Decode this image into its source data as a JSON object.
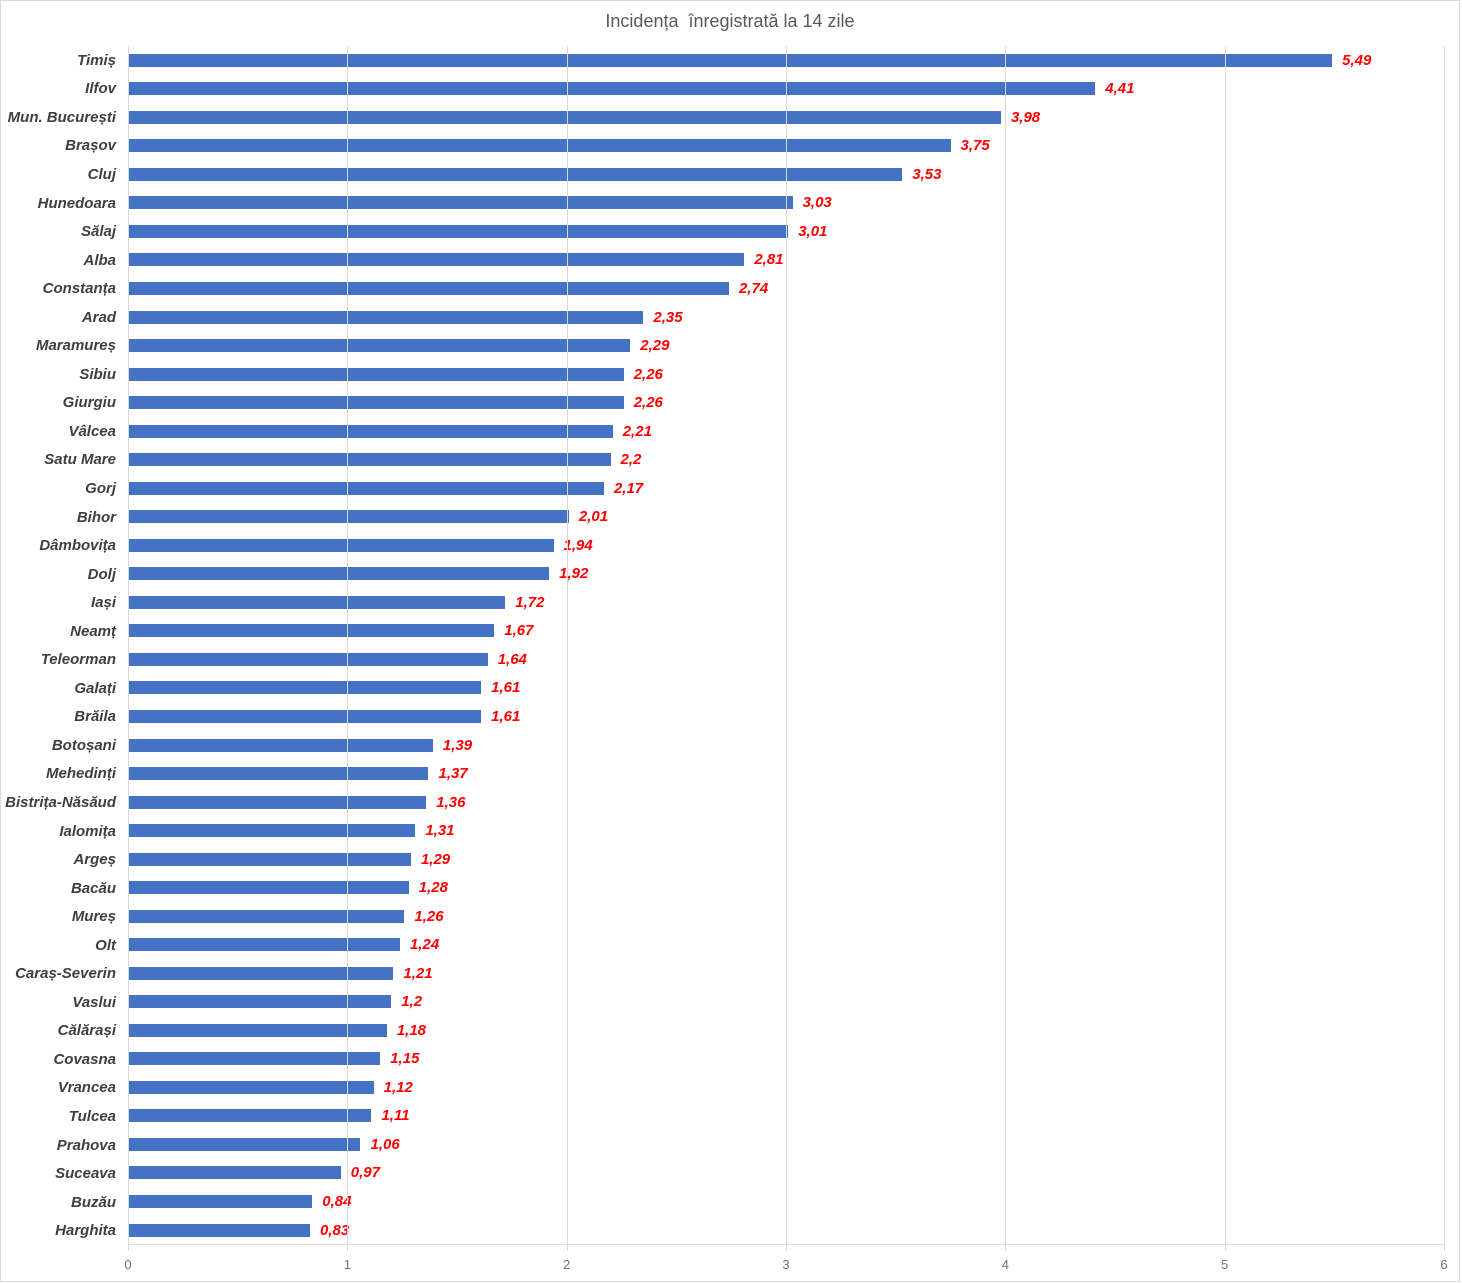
{
  "chart_data": {
    "type": "bar",
    "orientation": "horizontal",
    "title": "Incidența  înregistrată la 14 zile",
    "categories": [
      "Timiș",
      "Ilfov",
      "Mun. București",
      "Brașov",
      "Cluj",
      "Hunedoara",
      "Sălaj",
      "Alba",
      "Constanța",
      "Arad",
      "Maramureș",
      "Sibiu",
      "Giurgiu",
      "Vâlcea",
      "Satu Mare",
      "Gorj",
      "Bihor",
      "Dâmbovița",
      "Dolj",
      "Iași",
      "Neamț",
      "Teleorman",
      "Galați",
      "Brăila",
      "Botoșani",
      "Mehedinți",
      "Bistrița-Năsăud",
      "Ialomița",
      "Argeș",
      "Bacău",
      "Mureș",
      "Olt",
      "Caraș-Severin",
      "Vaslui",
      "Călărași",
      "Covasna",
      "Vrancea",
      "Tulcea",
      "Prahova",
      "Suceava",
      "Buzău",
      "Harghita"
    ],
    "values": [
      5.49,
      4.41,
      3.98,
      3.75,
      3.53,
      3.03,
      3.01,
      2.81,
      2.74,
      2.35,
      2.29,
      2.26,
      2.26,
      2.21,
      2.2,
      2.17,
      2.01,
      1.94,
      1.92,
      1.72,
      1.67,
      1.64,
      1.61,
      1.61,
      1.39,
      1.37,
      1.36,
      1.31,
      1.29,
      1.28,
      1.26,
      1.24,
      1.21,
      1.2,
      1.18,
      1.15,
      1.12,
      1.11,
      1.06,
      0.97,
      0.84,
      0.83
    ],
    "value_labels": [
      "5,49",
      "4,41",
      "3,98",
      "3,75",
      "3,53",
      "3,03",
      "3,01",
      "2,81",
      "2,74",
      "2,35",
      "2,29",
      "2,26",
      "2,26",
      "2,21",
      "2,2",
      "2,17",
      "2,01",
      "1,94",
      "1,92",
      "1,72",
      "1,67",
      "1,64",
      "1,61",
      "1,61",
      "1,39",
      "1,37",
      "1,36",
      "1,31",
      "1,29",
      "1,28",
      "1,26",
      "1,24",
      "1,21",
      "1,2",
      "1,18",
      "1,15",
      "1,12",
      "1,11",
      "1,06",
      "0,97",
      "0,84",
      "0,83"
    ],
    "xlabel": "",
    "ylabel": "",
    "x_ticks": [
      "0",
      "1",
      "2",
      "3",
      "4",
      "5",
      "6"
    ],
    "xlim": [
      0,
      6
    ],
    "grid": true,
    "legend": false,
    "colors": {
      "bar": "#4472C4",
      "value_label": "#FF0000",
      "category_label": "#3F3F3F",
      "title": "#595959",
      "gridline": "#D9D9D9",
      "axis_tick_label": "#737373",
      "background": "#FFFFFF",
      "border": "#D9D9D9"
    }
  }
}
